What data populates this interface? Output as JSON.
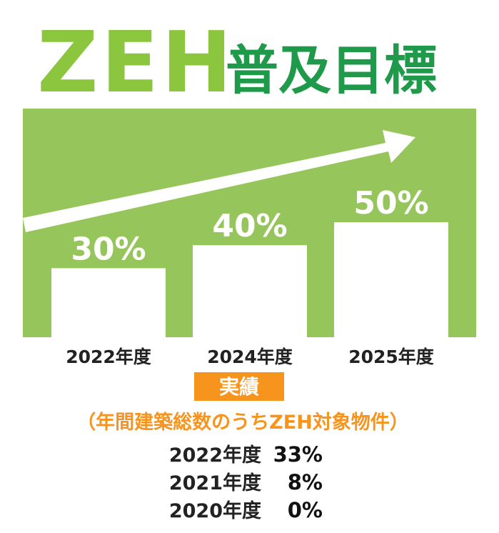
{
  "chart_data": {
    "type": "bar",
    "title": "ZEH",
    "subtitle": "普及目標",
    "categories": [
      "2022年度",
      "2024年度",
      "2025年度"
    ],
    "values": [
      30,
      40,
      50
    ],
    "value_labels": [
      "30%",
      "40%",
      "50%"
    ],
    "color": "#ffffff"
  },
  "actuals": {
    "label": "実績",
    "note": "（年間建築総数のうちZEH対象物件）",
    "rows": [
      [
        "2022年度",
        "33%"
      ],
      [
        "2021年度",
        "8%"
      ],
      [
        "2020年度",
        "0%"
      ]
    ]
  }
}
